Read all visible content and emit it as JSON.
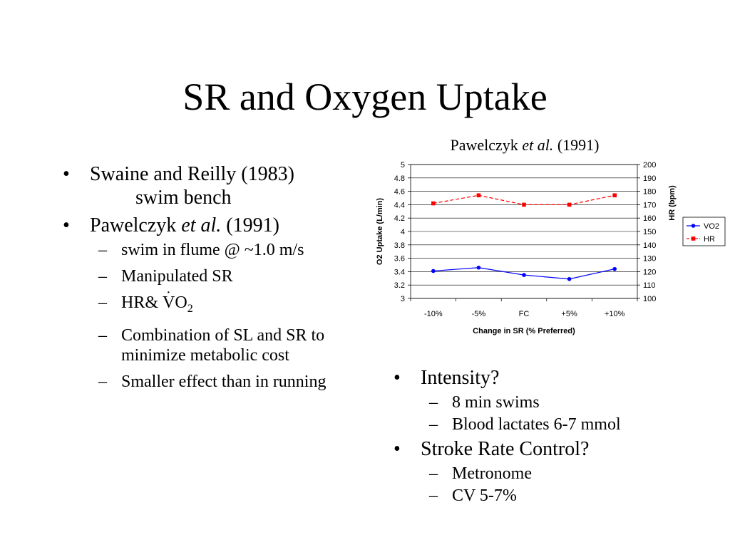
{
  "title": "SR and Oxygen Uptake",
  "left_bullets": {
    "b1": "Swaine and Reilly (1983)",
    "b1_cont": "swim bench",
    "b2_pre": "Pawelczyk ",
    "b2_em": "et al.",
    "b2_post": " (1991)",
    "subs": {
      "s1": "swim in flume @ ~1.0 m/s",
      "s2": "Manipulated SR",
      "s3_pre": "HR&",
      "s3_vo": "VO",
      "s3_sub": "2",
      "s4": "Combination of SL and SR to minimize metabolic cost",
      "s5": "Smaller effect than in running"
    }
  },
  "right_bullets": {
    "b1": "Intensity?",
    "b1_subs": [
      "8 min swims",
      "Blood lactates 6-7 mmol"
    ],
    "b2": "Stroke Rate Control?",
    "b2_subs": [
      "Metronome",
      "CV 5-7%"
    ]
  },
  "caption": {
    "pre": "Pawelczyk ",
    "em": "et al.",
    "post": " (1991)"
  },
  "glyphs": {
    "bullet": "•",
    "dash": "–",
    "dot": "·"
  },
  "chart_data": {
    "type": "line",
    "categories": [
      "-10%",
      "-5%",
      "FC",
      "+5%",
      "+10%"
    ],
    "xlabel": "Change in SR (% Preferred)",
    "ylabel": "O2 Uptake (L/min)",
    "y2label": "HR (bpm)",
    "ylim": [
      3,
      5
    ],
    "y2lim": [
      100,
      200
    ],
    "yticks": [
      "3",
      "3.2",
      "3.4",
      "3.6",
      "3.8",
      "4",
      "4.2",
      "4.4",
      "4.6",
      "4.8",
      "5"
    ],
    "y2ticks": [
      "100",
      "110",
      "120",
      "130",
      "140",
      "150",
      "160",
      "170",
      "180",
      "190",
      "200"
    ],
    "legend_position": "right",
    "series": [
      {
        "name": "VO2",
        "axis": "left",
        "color": "#0000ff",
        "marker": "circle",
        "line": "solid",
        "values": [
          3.41,
          3.46,
          3.35,
          3.29,
          3.44
        ]
      },
      {
        "name": "HR",
        "axis": "right",
        "color": "#ff0000",
        "marker": "square",
        "line": "dashed",
        "values": [
          171,
          177,
          170,
          170,
          177
        ]
      }
    ]
  }
}
